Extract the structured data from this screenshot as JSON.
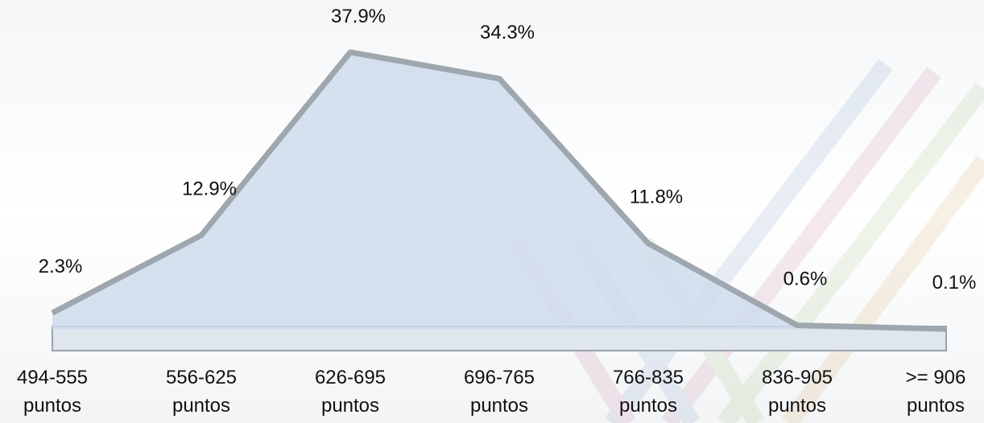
{
  "chart_data": {
    "type": "area",
    "categories": [
      "494-555 puntos",
      "556-625 puntos",
      "626-695 puntos",
      "696-765 puntos",
      "766-835 puntos",
      "836-905 puntos",
      ">= 906 puntos"
    ],
    "values": [
      2.3,
      12.9,
      37.9,
      34.3,
      11.8,
      0.6,
      0.1
    ],
    "value_labels": [
      "2.3%",
      "12.9%",
      "37.9%",
      "34.3%",
      "11.8%",
      "0.6%",
      "0.1%"
    ],
    "color": "#cfdcec"
  }
}
